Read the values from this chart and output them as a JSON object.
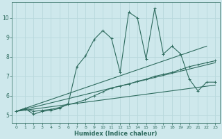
{
  "xlabel": "Humidex (Indice chaleur)",
  "ylabel": "",
  "bg_color": "#cee8ec",
  "grid_color": "#b8d8dc",
  "line_color": "#2e6b5e",
  "yticks": [
    5,
    6,
    7,
    8,
    9,
    10
  ],
  "xticks": [
    0,
    1,
    2,
    3,
    4,
    5,
    6,
    7,
    8,
    9,
    10,
    11,
    12,
    13,
    14,
    15,
    16,
    17,
    18,
    19,
    20,
    21,
    22,
    23
  ],
  "xlim": [
    -0.5,
    23.5
  ],
  "ylim": [
    4.6,
    10.8
  ],
  "line1_x": [
    0,
    1,
    2,
    3,
    4,
    5,
    6,
    7,
    8,
    9,
    10,
    11,
    12,
    13,
    14,
    15,
    16,
    17,
    18,
    19,
    20,
    21,
    22,
    23
  ],
  "line1_y": [
    5.2,
    5.35,
    5.05,
    5.2,
    5.25,
    5.35,
    5.6,
    7.5,
    8.05,
    8.9,
    9.35,
    8.95,
    7.2,
    10.3,
    10.0,
    7.9,
    10.5,
    8.15,
    8.55,
    8.15,
    6.85,
    6.25,
    6.7,
    6.7
  ],
  "line2_x": [
    0,
    22
  ],
  "line2_y": [
    5.2,
    8.55
  ],
  "line3_x": [
    0,
    23
  ],
  "line3_y": [
    5.2,
    7.7
  ],
  "line4_x": [
    0,
    23
  ],
  "line4_y": [
    5.2,
    6.55
  ],
  "line5_x": [
    0,
    1,
    2,
    3,
    4,
    5,
    6,
    7,
    8,
    9,
    10,
    11,
    12,
    13,
    14,
    15,
    16,
    17,
    18,
    19,
    20,
    21,
    22,
    23
  ],
  "line5_y": [
    5.2,
    5.3,
    5.2,
    5.25,
    5.3,
    5.4,
    5.55,
    5.65,
    5.8,
    6.0,
    6.2,
    6.4,
    6.5,
    6.6,
    6.75,
    6.85,
    7.0,
    7.1,
    7.2,
    7.35,
    7.5,
    7.6,
    7.7,
    7.8
  ]
}
